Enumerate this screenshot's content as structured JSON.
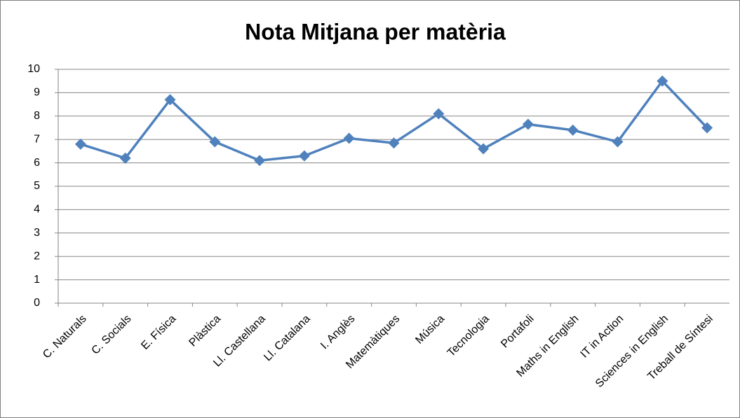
{
  "chart_data": {
    "type": "line",
    "title": "Nota Mitjana per matèria",
    "categories": [
      "C. Naturals",
      "C. Socials",
      "E. Física",
      "Plàstica",
      "Ll. Castellana",
      "Ll. Catalana",
      "I. Anglès",
      "Matemàtiques",
      "Música",
      "Tecnologia",
      "Portafoli",
      "Maths in English",
      "IT in Action",
      "Sciences in English",
      "Treball de Síntesi"
    ],
    "series": [
      {
        "color": "#4f81bd",
        "values": [
          6.8,
          6.2,
          8.7,
          6.9,
          6.1,
          6.3,
          7.05,
          6.85,
          8.1,
          6.6,
          7.65,
          7.4,
          6.9,
          9.5,
          7.5
        ]
      }
    ],
    "ylim": [
      0,
      10
    ],
    "yticks": [
      0,
      1,
      2,
      3,
      4,
      5,
      6,
      7,
      8,
      9,
      10
    ],
    "grid": true
  }
}
